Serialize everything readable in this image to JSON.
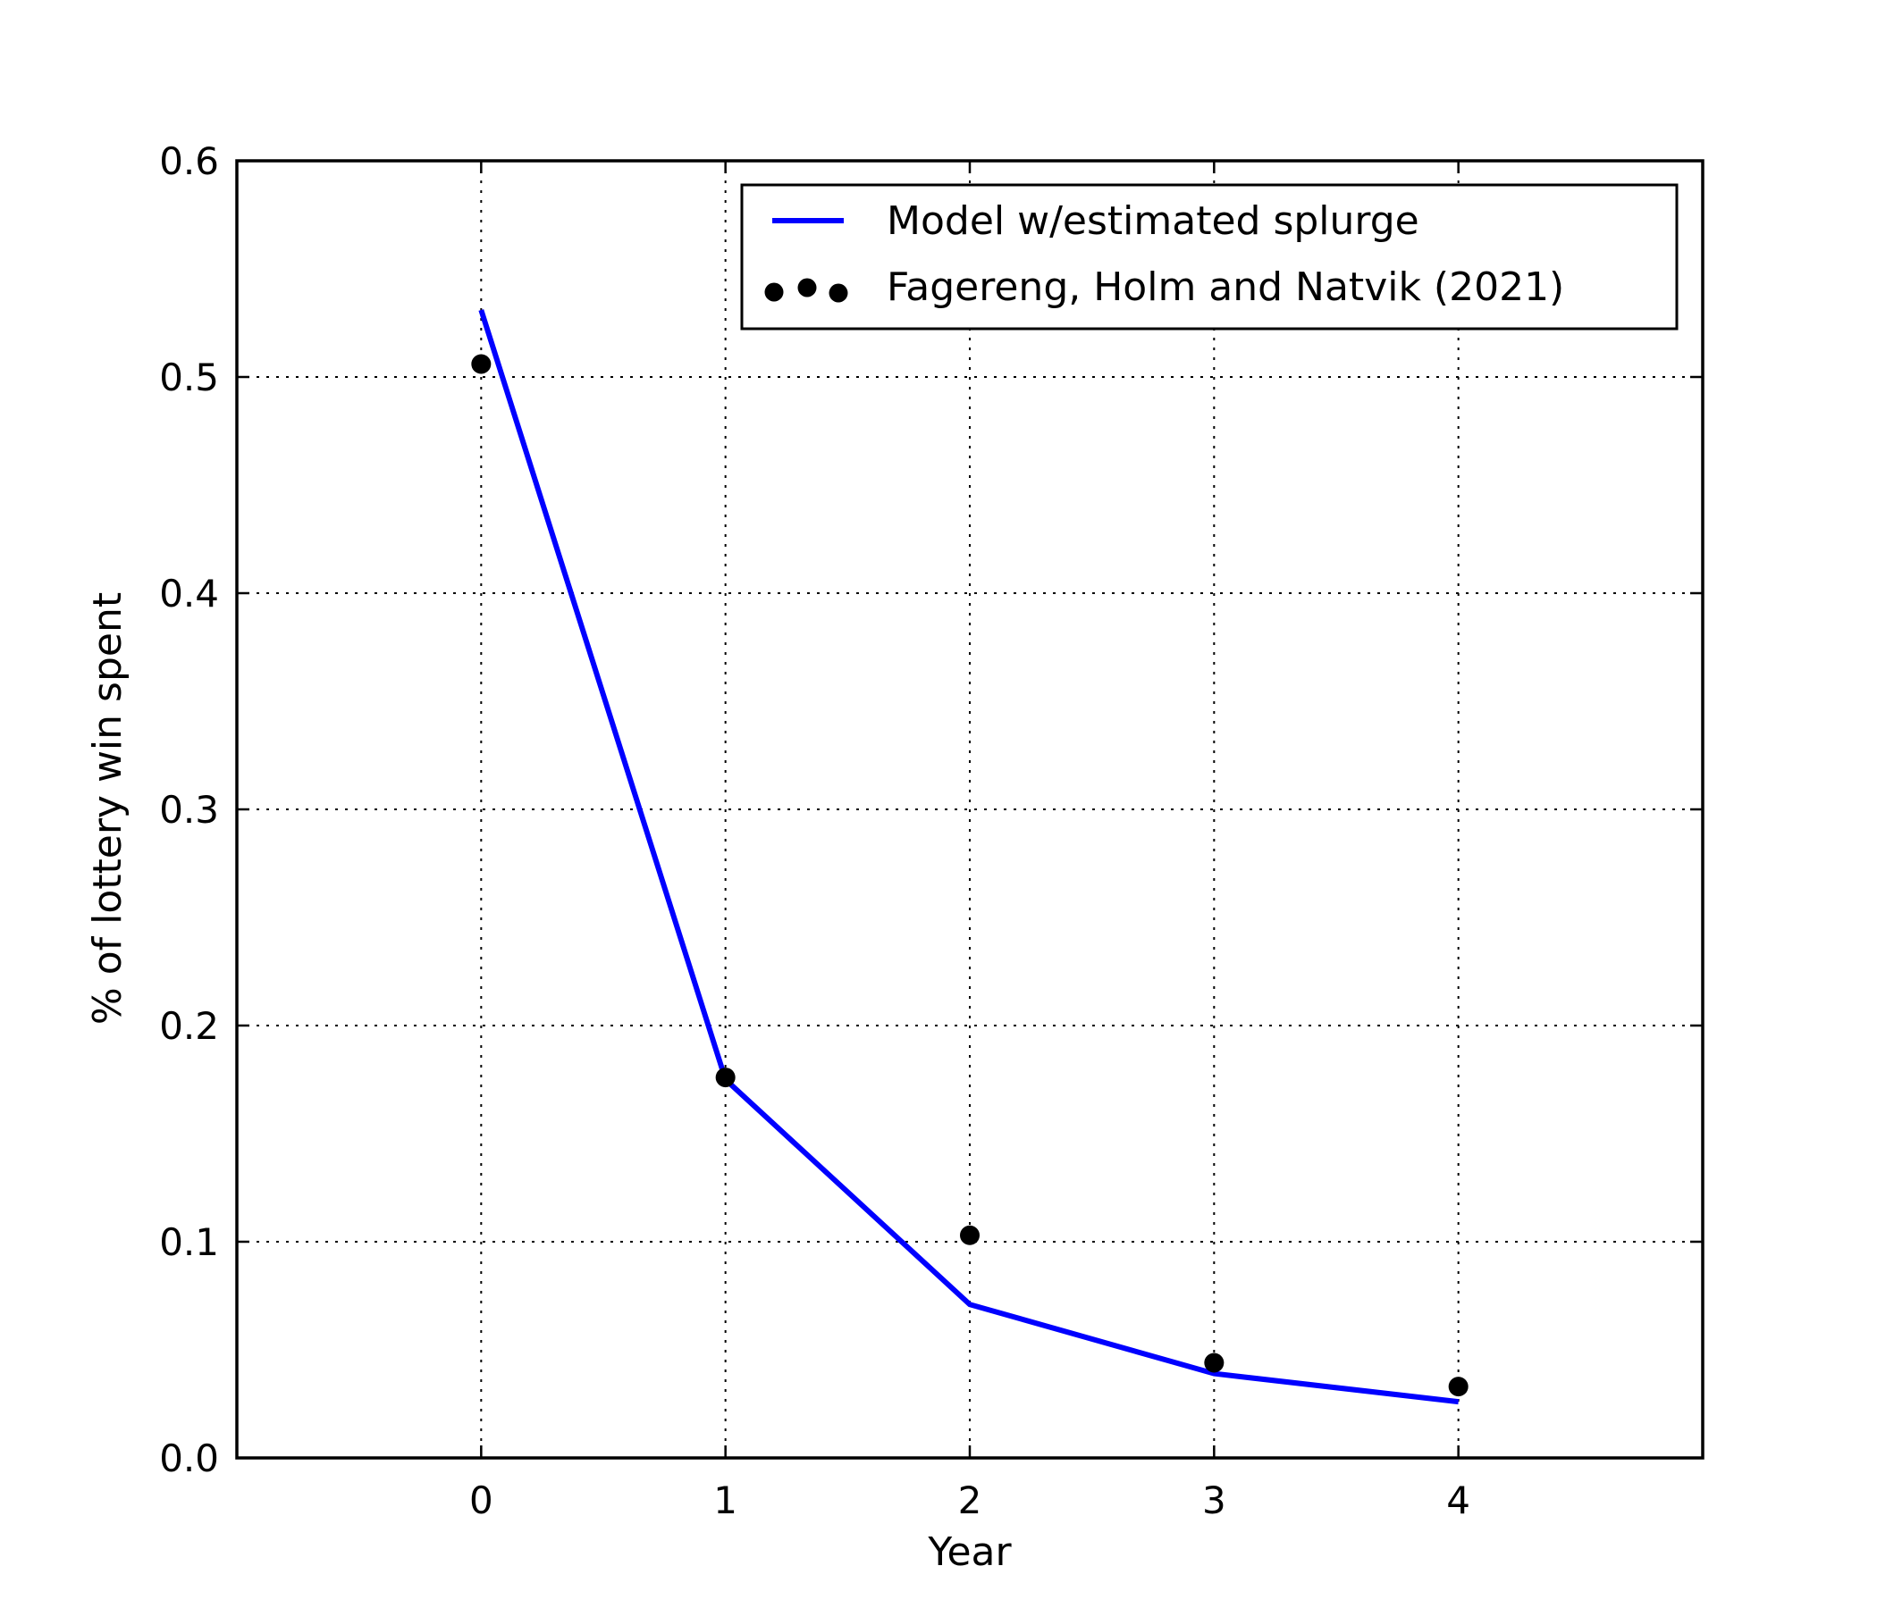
{
  "chart_data": {
    "type": "line",
    "xlabel": "Year",
    "ylabel": "% of lottery win spent",
    "xlim": [
      -1,
      5
    ],
    "ylim": [
      0.0,
      0.6
    ],
    "xticks": [
      0,
      1,
      2,
      3,
      4
    ],
    "yticks": [
      0.0,
      0.1,
      0.2,
      0.3,
      0.4,
      0.5,
      0.6
    ],
    "xtick_labels": [
      "0",
      "1",
      "2",
      "3",
      "4"
    ],
    "ytick_labels": [
      "0.0",
      "0.1",
      "0.2",
      "0.3",
      "0.4",
      "0.5",
      "0.6"
    ],
    "grid": true,
    "legend_position": "top-right",
    "series": [
      {
        "name": "Model w/estimated splurge",
        "kind": "line",
        "color": "#0000ff",
        "x": [
          0,
          1,
          2,
          3,
          4
        ],
        "y": [
          0.531,
          0.175,
          0.071,
          0.039,
          0.026
        ]
      },
      {
        "name": "Fagereng, Holm and Natvik (2021)",
        "kind": "scatter",
        "color": "#000000",
        "x": [
          0,
          1,
          2,
          3,
          4
        ],
        "y": [
          0.506,
          0.176,
          0.103,
          0.044,
          0.033
        ]
      }
    ]
  }
}
